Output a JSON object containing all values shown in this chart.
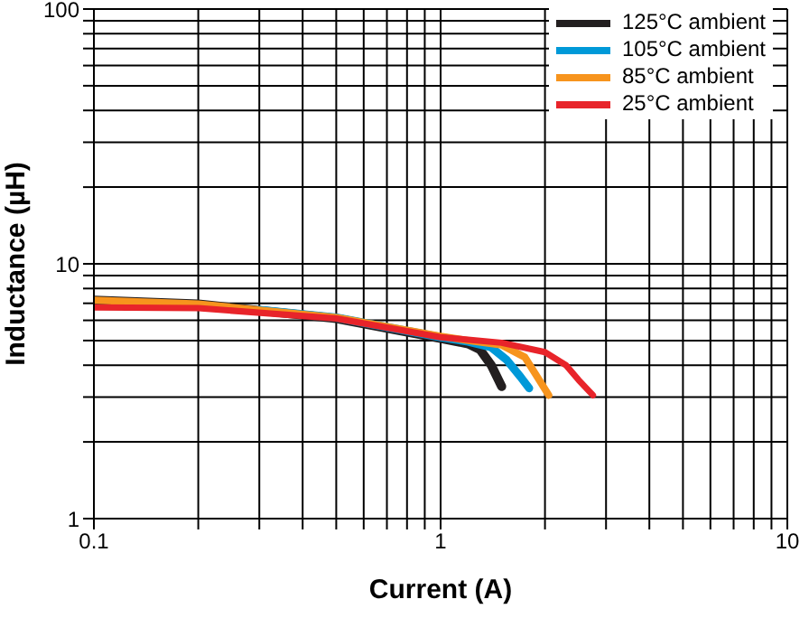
{
  "chart_data": {
    "type": "line",
    "xlabel": "Current (A)",
    "ylabel": "Inductance (µH)",
    "series": [
      {
        "name": "125°C ambient",
        "color": "#231f20",
        "x": [
          0.1,
          0.2,
          0.5,
          1,
          1.2,
          1.3,
          1.4,
          1.5
        ],
        "values": [
          7.2,
          6.95,
          6.1,
          5.1,
          4.85,
          4.6,
          4.0,
          3.3
        ]
      },
      {
        "name": "105°C ambient",
        "color": "#0099d8",
        "x": [
          0.3,
          0.5,
          1,
          1.2,
          1.4,
          1.55,
          1.7,
          1.8
        ],
        "values": [
          6.6,
          6.15,
          5.15,
          4.95,
          4.7,
          4.2,
          3.6,
          3.25
        ]
      },
      {
        "name": "85°C ambient",
        "color": "#f7941d",
        "x": [
          0.1,
          0.2,
          0.5,
          1,
          1.2,
          1.5,
          1.75,
          1.9,
          2.05
        ],
        "values": [
          7.2,
          6.95,
          6.15,
          5.2,
          5.0,
          4.8,
          4.3,
          3.6,
          3.05
        ]
      },
      {
        "name": "25°C ambient",
        "color": "#e8242a",
        "x": [
          0.1,
          0.2,
          0.5,
          1,
          1.5,
          2,
          2.3,
          2.5,
          2.75
        ],
        "values": [
          6.75,
          6.7,
          6.1,
          5.15,
          4.9,
          4.5,
          4.0,
          3.5,
          3.05
        ]
      }
    ],
    "log": "xy",
    "xlim": [
      0.1,
      10
    ],
    "ylim": [
      1,
      100
    ],
    "xticks": [
      0.1,
      {
        "value": 0.2,
        "label": null
      },
      {
        "value": 0.3,
        "label": null
      },
      {
        "value": 0.4,
        "label": null
      },
      {
        "value": 0.5,
        "label": null
      },
      {
        "value": 0.6,
        "label": null
      },
      {
        "value": 0.7,
        "label": null
      },
      {
        "value": 0.8,
        "label": null
      },
      {
        "value": 0.9,
        "label": null
      },
      1,
      {
        "value": 2,
        "label": null
      },
      {
        "value": 3,
        "label": null
      },
      {
        "value": 4,
        "label": null
      },
      {
        "value": 5,
        "label": null
      },
      {
        "value": 6,
        "label": null
      },
      {
        "value": 7,
        "label": null
      },
      {
        "value": 8,
        "label": null
      },
      {
        "value": 9,
        "label": null
      },
      10
    ],
    "yticks": [
      1,
      {
        "value": 2,
        "label": null
      },
      {
        "value": 3,
        "label": null
      },
      {
        "value": 4,
        "label": null
      },
      {
        "value": 5,
        "label": null
      },
      {
        "value": 6,
        "label": null
      },
      {
        "value": 7,
        "label": null
      },
      {
        "value": 8,
        "label": null
      },
      {
        "value": 9,
        "label": null
      },
      10,
      {
        "value": 20,
        "label": null
      },
      {
        "value": 30,
        "label": null
      },
      {
        "value": 40,
        "label": null
      },
      {
        "value": 50,
        "label": null
      },
      {
        "value": 60,
        "label": null
      },
      {
        "value": 70,
        "label": null
      },
      {
        "value": 80,
        "label": null
      },
      {
        "value": 90,
        "label": null
      },
      100
    ],
    "grid": true,
    "legend": "top right",
    "marker": "none",
    "line_style": "solid"
  }
}
